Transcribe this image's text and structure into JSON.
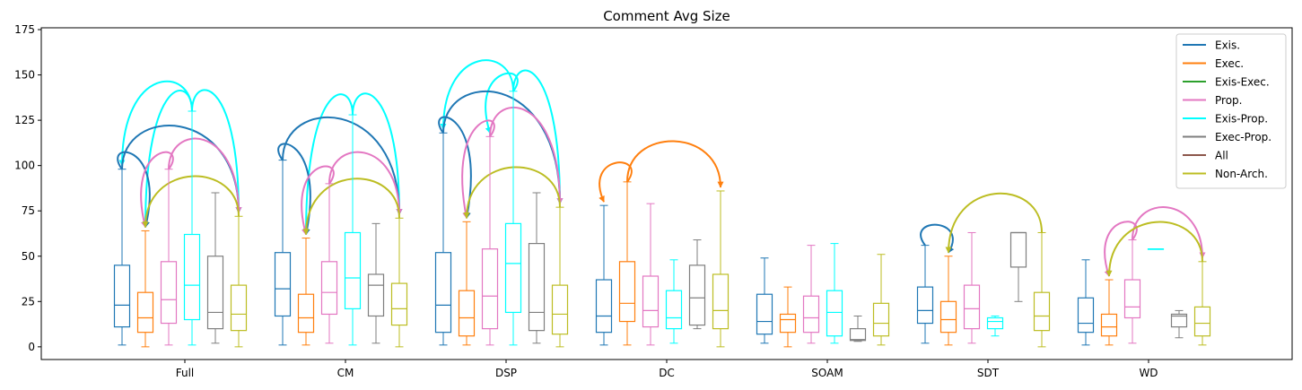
{
  "chart_data": {
    "type": "box",
    "title": "Comment Avg Size",
    "xlabel": "",
    "ylabel": "",
    "ylim": [
      -7,
      176
    ],
    "yticks": [
      0,
      25,
      50,
      75,
      100,
      125,
      150,
      175
    ],
    "grid": false,
    "legend_position": "top-right",
    "categories": [
      "Full",
      "CM",
      "DSP",
      "DC",
      "SOAM",
      "SDT",
      "WD"
    ],
    "series": [
      {
        "name": "Exis.",
        "color": "#1f77b4"
      },
      {
        "name": "Exec.",
        "color": "#ff7f0e"
      },
      {
        "name": "Exis-Exec.",
        "color": "#2ca02c"
      },
      {
        "name": "Prop.",
        "color": "#e377c2"
      },
      {
        "name": "Exis-Prop.",
        "color": "#00ffff"
      },
      {
        "name": "Exec-Prop.",
        "color": "#7f7f7f"
      },
      {
        "name": "All",
        "color": "#8c564b"
      },
      {
        "name": "Non-Arch.",
        "color": "#bcbd22"
      }
    ],
    "boxes": [
      {
        "category": "Full",
        "series": "Exis.",
        "min": 1,
        "q1": 11,
        "median": 23,
        "q3": 45,
        "max": 98
      },
      {
        "category": "Full",
        "series": "Exec.",
        "min": 0,
        "q1": 8,
        "median": 16,
        "q3": 30,
        "max": 64
      },
      {
        "category": "Full",
        "series": "Prop.",
        "min": 1,
        "q1": 13,
        "median": 26,
        "q3": 47,
        "max": 98
      },
      {
        "category": "Full",
        "series": "Exis-Prop.",
        "min": 1,
        "q1": 15,
        "median": 34,
        "q3": 62,
        "max": 130
      },
      {
        "category": "Full",
        "series": "Exec-Prop.",
        "min": 2,
        "q1": 10,
        "median": 19,
        "q3": 50,
        "max": 85
      },
      {
        "category": "Full",
        "series": "Non-Arch.",
        "min": 0,
        "q1": 9,
        "median": 18,
        "q3": 34,
        "max": 72
      },
      {
        "category": "CM",
        "series": "Exis.",
        "min": 1,
        "q1": 17,
        "median": 32,
        "q3": 52,
        "max": 103
      },
      {
        "category": "CM",
        "series": "Exec.",
        "min": 1,
        "q1": 8,
        "median": 16,
        "q3": 29,
        "max": 60
      },
      {
        "category": "CM",
        "series": "Prop.",
        "min": 2,
        "q1": 18,
        "median": 30,
        "q3": 47,
        "max": 90
      },
      {
        "category": "CM",
        "series": "Exis-Prop.",
        "min": 1,
        "q1": 21,
        "median": 38,
        "q3": 63,
        "max": 128
      },
      {
        "category": "CM",
        "series": "Exec-Prop.",
        "min": 2,
        "q1": 17,
        "median": 34,
        "q3": 40,
        "max": 68
      },
      {
        "category": "CM",
        "series": "Non-Arch.",
        "min": 0,
        "q1": 12,
        "median": 21,
        "q3": 35,
        "max": 71
      },
      {
        "category": "DSP",
        "series": "Exis.",
        "min": 1,
        "q1": 8,
        "median": 23,
        "q3": 52,
        "max": 118
      },
      {
        "category": "DSP",
        "series": "Exec.",
        "min": 1,
        "q1": 6,
        "median": 16,
        "q3": 31,
        "max": 69
      },
      {
        "category": "DSP",
        "series": "Prop.",
        "min": 1,
        "q1": 10,
        "median": 28,
        "q3": 54,
        "max": 116
      },
      {
        "category": "DSP",
        "series": "Exis-Prop.",
        "min": 1,
        "q1": 19,
        "median": 46,
        "q3": 68,
        "max": 141
      },
      {
        "category": "DSP",
        "series": "Exec-Prop.",
        "min": 2,
        "q1": 9,
        "median": 19,
        "q3": 57,
        "max": 85
      },
      {
        "category": "DSP",
        "series": "Non-Arch.",
        "min": 0,
        "q1": 7,
        "median": 18,
        "q3": 34,
        "max": 77
      },
      {
        "category": "DC",
        "series": "Exis.",
        "min": 1,
        "q1": 8,
        "median": 17,
        "q3": 37,
        "max": 78
      },
      {
        "category": "DC",
        "series": "Exec.",
        "min": 1,
        "q1": 14,
        "median": 24,
        "q3": 47,
        "max": 91
      },
      {
        "category": "DC",
        "series": "Prop.",
        "min": 1,
        "q1": 11,
        "median": 20,
        "q3": 39,
        "max": 79
      },
      {
        "category": "DC",
        "series": "Exis-Prop.",
        "min": 2,
        "q1": 10,
        "median": 16,
        "q3": 31,
        "max": 48
      },
      {
        "category": "DC",
        "series": "Exec-Prop.",
        "min": 10,
        "q1": 12,
        "median": 27,
        "q3": 45,
        "max": 59
      },
      {
        "category": "DC",
        "series": "Non-Arch.",
        "min": 0,
        "q1": 10,
        "median": 20,
        "q3": 40,
        "max": 86
      },
      {
        "category": "SOAM",
        "series": "Exis.",
        "min": 2,
        "q1": 7,
        "median": 14,
        "q3": 29,
        "max": 49
      },
      {
        "category": "SOAM",
        "series": "Exec.",
        "min": 0,
        "q1": 8,
        "median": 15,
        "q3": 18,
        "max": 33
      },
      {
        "category": "SOAM",
        "series": "Prop.",
        "min": 2,
        "q1": 8,
        "median": 16,
        "q3": 28,
        "max": 56
      },
      {
        "category": "SOAM",
        "series": "Exis-Prop.",
        "min": 2,
        "q1": 6,
        "median": 19,
        "q3": 31,
        "max": 57
      },
      {
        "category": "SOAM",
        "series": "Exec-Prop.",
        "min": 3,
        "q1": 3.5,
        "median": 4,
        "q3": 10,
        "max": 17
      },
      {
        "category": "SOAM",
        "series": "Non-Arch.",
        "min": 1,
        "q1": 6,
        "median": 13,
        "q3": 24,
        "max": 51
      },
      {
        "category": "SDT",
        "series": "Exis.",
        "min": 2,
        "q1": 13,
        "median": 20,
        "q3": 33,
        "max": 56
      },
      {
        "category": "SDT",
        "series": "Exec.",
        "min": 1,
        "q1": 8,
        "median": 15,
        "q3": 25,
        "max": 50
      },
      {
        "category": "SDT",
        "series": "Prop.",
        "min": 2,
        "q1": 10,
        "median": 21,
        "q3": 34,
        "max": 63
      },
      {
        "category": "SDT",
        "series": "Exis-Prop.",
        "min": 6,
        "q1": 10,
        "median": 14,
        "q3": 16,
        "max": 17
      },
      {
        "category": "SDT",
        "series": "Exec-Prop.",
        "min": 25,
        "q1": 44,
        "median": 63,
        "q3": 63,
        "max": 63
      },
      {
        "category": "SDT",
        "series": "Non-Arch.",
        "min": 0,
        "q1": 9,
        "median": 17,
        "q3": 30,
        "max": 63
      },
      {
        "category": "WD",
        "series": "Exis.",
        "min": 1,
        "q1": 8,
        "median": 13,
        "q3": 27,
        "max": 48
      },
      {
        "category": "WD",
        "series": "Exec.",
        "min": 1,
        "q1": 6,
        "median": 11,
        "q3": 18,
        "max": 37
      },
      {
        "category": "WD",
        "series": "Prop.",
        "min": 2,
        "q1": 16,
        "median": 22,
        "q3": 37,
        "max": 59
      },
      {
        "category": "WD",
        "series": "Exis-Prop.",
        "min": 54,
        "q1": 54,
        "median": 54,
        "q3": 54,
        "max": 54
      },
      {
        "category": "WD",
        "series": "Exec-Prop.",
        "min": 5,
        "q1": 11,
        "median": 17,
        "q3": 18,
        "max": 20
      },
      {
        "category": "WD",
        "series": "Non-Arch.",
        "min": 1,
        "q1": 6,
        "median": 13,
        "q3": 22,
        "max": 47
      }
    ],
    "annotations": [
      {
        "category": "Full",
        "from": "Exis-Prop.",
        "to": "Exis.",
        "color": "#00ffff"
      },
      {
        "category": "Full",
        "from": "Exis-Prop.",
        "to": "Exec.",
        "color": "#00ffff"
      },
      {
        "category": "Full",
        "from": "Exis-Prop.",
        "to": "Non-Arch.",
        "color": "#00ffff"
      },
      {
        "category": "Full",
        "from": "Exis.",
        "to": "Exec.",
        "color": "#1f77b4"
      },
      {
        "category": "Full",
        "from": "Exis.",
        "to": "Non-Arch.",
        "color": "#1f77b4"
      },
      {
        "category": "Full",
        "from": "Prop.",
        "to": "Exec.",
        "color": "#e377c2"
      },
      {
        "category": "Full",
        "from": "Prop.",
        "to": "Non-Arch.",
        "color": "#e377c2"
      },
      {
        "category": "Full",
        "from": "Non-Arch.",
        "to": "Exec.",
        "color": "#bcbd22"
      },
      {
        "category": "CM",
        "from": "Exis-Prop.",
        "to": "Exec.",
        "color": "#00ffff"
      },
      {
        "category": "CM",
        "from": "Exis-Prop.",
        "to": "Non-Arch.",
        "color": "#00ffff"
      },
      {
        "category": "CM",
        "from": "Exis.",
        "to": "Exec.",
        "color": "#1f77b4"
      },
      {
        "category": "CM",
        "from": "Exis.",
        "to": "Non-Arch.",
        "color": "#1f77b4"
      },
      {
        "category": "CM",
        "from": "Prop.",
        "to": "Exec.",
        "color": "#e377c2"
      },
      {
        "category": "CM",
        "from": "Prop.",
        "to": "Non-Arch.",
        "color": "#e377c2"
      },
      {
        "category": "CM",
        "from": "Non-Arch.",
        "to": "Exec.",
        "color": "#bcbd22"
      },
      {
        "category": "DSP",
        "from": "Exis-Prop.",
        "to": "Exis.",
        "color": "#00ffff"
      },
      {
        "category": "DSP",
        "from": "Exis-Prop.",
        "to": "Prop.",
        "color": "#00ffff"
      },
      {
        "category": "DSP",
        "from": "Exis-Prop.",
        "to": "Non-Arch.",
        "color": "#00ffff"
      },
      {
        "category": "DSP",
        "from": "Exis.",
        "to": "Exec.",
        "color": "#1f77b4"
      },
      {
        "category": "DSP",
        "from": "Exis.",
        "to": "Non-Arch.",
        "color": "#1f77b4"
      },
      {
        "category": "DSP",
        "from": "Prop.",
        "to": "Exec.",
        "color": "#e377c2"
      },
      {
        "category": "DSP",
        "from": "Prop.",
        "to": "Non-Arch.",
        "color": "#e377c2"
      },
      {
        "category": "DSP",
        "from": "Non-Arch.",
        "to": "Exec.",
        "color": "#bcbd22"
      },
      {
        "category": "DC",
        "from": "Exec.",
        "to": "Exis.",
        "color": "#ff7f0e"
      },
      {
        "category": "DC",
        "from": "Exec.",
        "to": "Non-Arch.",
        "color": "#ff7f0e"
      },
      {
        "category": "SDT",
        "from": "Exis.",
        "to": "Exec.",
        "color": "#1f77b4"
      },
      {
        "category": "SDT",
        "from": "Non-Arch.",
        "to": "Exec.",
        "color": "#bcbd22"
      },
      {
        "category": "WD",
        "from": "Prop.",
        "to": "Exec.",
        "color": "#e377c2"
      },
      {
        "category": "WD",
        "from": "Prop.",
        "to": "Non-Arch.",
        "color": "#e377c2"
      },
      {
        "category": "WD",
        "from": "Non-Arch.",
        "to": "Exec.",
        "color": "#bcbd22"
      }
    ]
  }
}
